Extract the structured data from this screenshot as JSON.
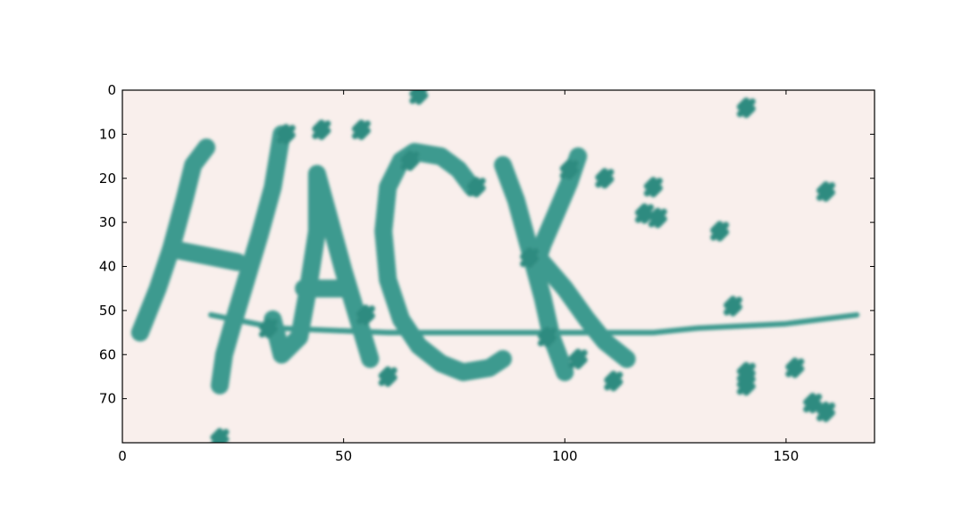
{
  "chart_data": {
    "type": "image",
    "image_text": "HACK",
    "x_ticks": [
      0,
      50,
      100,
      150
    ],
    "y_ticks": [
      0,
      10,
      20,
      30,
      40,
      50,
      60,
      70
    ],
    "xlim": [
      0,
      170
    ],
    "ylim": [
      80,
      0
    ],
    "y_inverted": true,
    "grid": false,
    "title": "",
    "xlabel": "",
    "ylabel": "",
    "colors": {
      "background": "#f9efec",
      "ink": "#3e9a8f",
      "noise": "#2f8b80"
    },
    "strokes": [
      [
        [
          4,
          55
        ],
        [
          8,
          45
        ],
        [
          11,
          36
        ],
        [
          14,
          25
        ],
        [
          16,
          17
        ],
        [
          19,
          13
        ]
      ],
      [
        [
          11,
          36
        ],
        [
          16,
          37
        ],
        [
          21,
          38
        ],
        [
          26,
          39
        ]
      ],
      [
        [
          36,
          10
        ],
        [
          34,
          22
        ],
        [
          31,
          33
        ],
        [
          28,
          43
        ],
        [
          25,
          53
        ],
        [
          23,
          60
        ],
        [
          22,
          67
        ]
      ],
      [
        [
          34,
          52
        ],
        [
          36,
          60
        ],
        [
          40,
          56
        ],
        [
          42,
          45
        ],
        [
          44,
          32
        ],
        [
          44,
          19
        ],
        [
          47,
          30
        ],
        [
          50,
          41
        ],
        [
          53,
          51
        ],
        [
          56,
          61
        ]
      ],
      [
        [
          41,
          45
        ],
        [
          46,
          45
        ],
        [
          50,
          45
        ]
      ],
      [
        [
          63,
          16
        ],
        [
          66,
          14
        ],
        [
          72,
          15
        ],
        [
          76,
          18
        ],
        [
          79,
          22
        ]
      ],
      [
        [
          63,
          16
        ],
        [
          60,
          22
        ],
        [
          59,
          32
        ],
        [
          60,
          43
        ],
        [
          63,
          52
        ],
        [
          67,
          58
        ],
        [
          72,
          62
        ],
        [
          77,
          64
        ],
        [
          83,
          63
        ],
        [
          86,
          61
        ]
      ],
      [
        [
          86,
          17
        ],
        [
          89,
          25
        ],
        [
          92,
          36
        ],
        [
          95,
          47
        ],
        [
          97,
          56
        ],
        [
          100,
          64
        ]
      ],
      [
        [
          103,
          15
        ],
        [
          101,
          21
        ],
        [
          98,
          28
        ],
        [
          95,
          35
        ],
        [
          94,
          38
        ]
      ],
      [
        [
          94,
          38
        ],
        [
          100,
          45
        ],
        [
          105,
          52
        ],
        [
          109,
          57
        ],
        [
          114,
          61
        ]
      ],
      [
        [
          20,
          51
        ],
        [
          35,
          54
        ],
        [
          60,
          55
        ],
        [
          100,
          55
        ],
        [
          120,
          55
        ],
        [
          130,
          54
        ],
        [
          150,
          53
        ],
        [
          166,
          51
        ]
      ]
    ],
    "noise_dots": [
      [
        67,
        1
      ],
      [
        45,
        9
      ],
      [
        54,
        9
      ],
      [
        37,
        10
      ],
      [
        65,
        16
      ],
      [
        101,
        18
      ],
      [
        80,
        22
      ],
      [
        109,
        20
      ],
      [
        120,
        22
      ],
      [
        118,
        28
      ],
      [
        121,
        29
      ],
      [
        159,
        23
      ],
      [
        135,
        32
      ],
      [
        141,
        4
      ],
      [
        92,
        38
      ],
      [
        138,
        49
      ],
      [
        55,
        51
      ],
      [
        33,
        54
      ],
      [
        96,
        56
      ],
      [
        103,
        61
      ],
      [
        60,
        65
      ],
      [
        111,
        66
      ],
      [
        141,
        64
      ],
      [
        141,
        67
      ],
      [
        152,
        63
      ],
      [
        156,
        71
      ],
      [
        159,
        73
      ],
      [
        22,
        79
      ]
    ]
  }
}
